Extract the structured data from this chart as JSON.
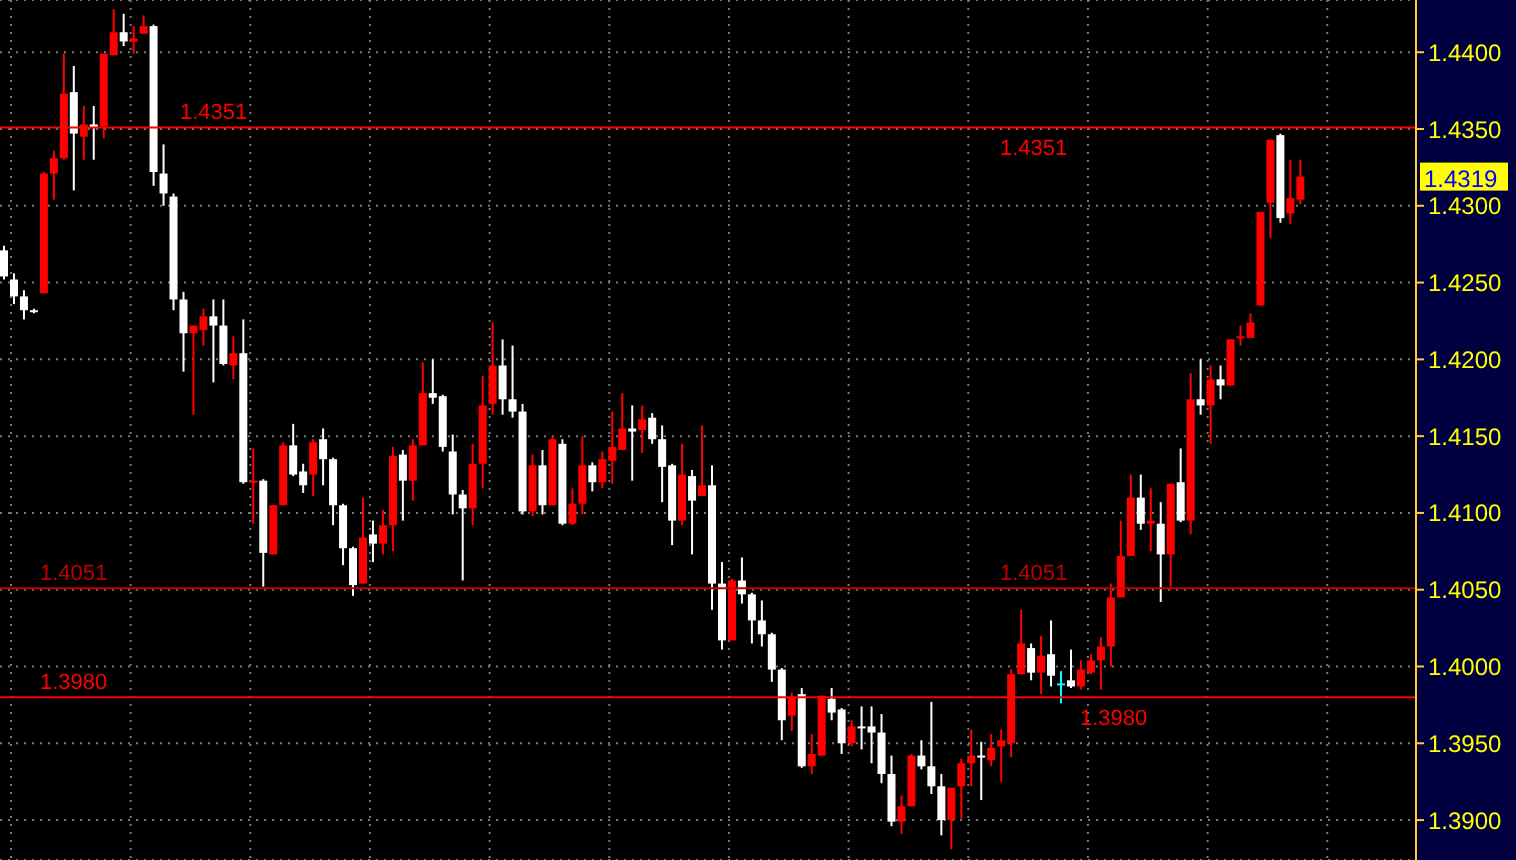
{
  "chart_data": {
    "type": "candlestick",
    "tick_labels": "y",
    "grid": true,
    "categories": [
      null,
      null,
      null,
      null,
      null,
      null,
      null,
      null,
      null,
      null,
      null,
      null,
      null,
      null,
      null,
      null,
      null,
      null,
      null,
      null,
      null,
      null,
      null,
      null,
      null,
      null,
      null,
      null,
      null,
      null,
      null,
      null,
      null,
      null,
      null,
      null,
      null,
      null,
      null,
      null,
      null,
      null,
      null,
      null,
      null,
      null,
      null,
      null,
      null,
      null,
      null,
      null,
      null,
      null,
      null,
      null,
      null,
      null,
      null,
      null,
      null,
      null,
      null,
      null,
      null,
      null,
      null,
      null,
      null,
      null,
      null,
      null,
      null,
      null,
      null,
      null,
      null,
      null,
      null,
      null,
      null,
      null,
      null,
      null,
      null,
      null,
      null,
      null,
      null,
      null,
      null,
      null,
      null,
      null,
      null,
      null,
      null,
      null,
      null,
      null,
      null,
      null,
      null,
      null,
      null,
      null,
      null,
      null,
      null,
      null,
      null,
      null,
      null,
      null,
      null,
      null,
      null,
      null,
      null,
      null,
      null,
      null,
      null,
      null,
      null,
      null,
      null,
      null,
      null,
      null,
      null,
      null,
      null,
      null,
      null,
      null,
      null,
      null,
      null,
      null,
      null,
      null
    ],
    "ohlc": [
      [
        1.4271,
        1.4274,
        1.4252,
        1.4254
      ],
      [
        1.4252,
        1.4256,
        1.4236,
        1.4241
      ],
      [
        1.4241,
        1.4245,
        1.4226,
        1.4232
      ],
      [
        1.4232,
        1.4233,
        1.423,
        1.4231
      ],
      [
        1.4243,
        1.4322,
        1.4243,
        1.4321
      ],
      [
        1.4321,
        1.4336,
        1.4304,
        1.4331
      ],
      [
        1.4331,
        1.4399,
        1.433,
        1.4373
      ],
      [
        1.4374,
        1.4391,
        1.431,
        1.4347
      ],
      [
        1.4345,
        1.4365,
        1.433,
        1.4353
      ],
      [
        1.4353,
        1.4365,
        1.433,
        1.4351
      ],
      [
        1.4352,
        1.4399,
        1.4344,
        1.4399
      ],
      [
        1.4398,
        1.4428,
        1.4398,
        1.4413
      ],
      [
        1.4413,
        1.4425,
        1.4404,
        1.4407
      ],
      [
        1.4407,
        1.4417,
        1.4399,
        1.4409
      ],
      [
        1.4412,
        1.4424,
        1.4412,
        1.4417
      ],
      [
        1.4417,
        1.4418,
        1.4313,
        1.4322
      ],
      [
        1.4321,
        1.434,
        1.43,
        1.4308
      ],
      [
        1.4306,
        1.4308,
        1.4232,
        1.4239
      ],
      [
        1.4239,
        1.4244,
        1.4192,
        1.4217
      ],
      [
        1.4217,
        1.4222,
        1.4164,
        1.4222
      ],
      [
        1.4219,
        1.4233,
        1.4209,
        1.4228
      ],
      [
        1.4228,
        1.4239,
        1.4185,
        1.4222
      ],
      [
        1.4222,
        1.4239,
        1.4196,
        1.4197
      ],
      [
        1.4196,
        1.4215,
        1.4187,
        1.4204
      ],
      [
        1.4204,
        1.4226,
        1.4119,
        1.412
      ],
      [
        1.412,
        1.4142,
        1.4093,
        1.4121
      ],
      [
        1.4121,
        1.4122,
        1.4052,
        1.4074
      ],
      [
        1.4073,
        1.4105,
        1.4073,
        1.4105
      ],
      [
        1.4105,
        1.4146,
        1.4105,
        1.4144
      ],
      [
        1.4144,
        1.4158,
        1.4124,
        1.4125
      ],
      [
        1.4127,
        1.4132,
        1.4113,
        1.4118
      ],
      [
        1.4125,
        1.4148,
        1.4111,
        1.4146
      ],
      [
        1.4148,
        1.4155,
        1.4118,
        1.4135
      ],
      [
        1.4135,
        1.4136,
        1.4092,
        1.4105
      ],
      [
        1.4105,
        1.4106,
        1.4066,
        1.4077
      ],
      [
        1.4077,
        1.4078,
        1.4046,
        1.4053
      ],
      [
        1.4054,
        1.411,
        1.4054,
        1.4084
      ],
      [
        1.4086,
        1.4095,
        1.4068,
        1.408
      ],
      [
        1.408,
        1.4102,
        1.4073,
        1.4092
      ],
      [
        1.4092,
        1.4143,
        1.4075,
        1.4137
      ],
      [
        1.4138,
        1.4141,
        1.4095,
        1.4121
      ],
      [
        1.4121,
        1.4148,
        1.4108,
        1.4144
      ],
      [
        1.4144,
        1.4198,
        1.4144,
        1.4178
      ],
      [
        1.4178,
        1.42,
        1.4171,
        1.4175
      ],
      [
        1.4176,
        1.4177,
        1.414,
        1.4143
      ],
      [
        1.414,
        1.4151,
        1.4099,
        1.4112
      ],
      [
        1.4112,
        1.4115,
        1.4056,
        1.4103
      ],
      [
        1.4103,
        1.4145,
        1.4092,
        1.4132
      ],
      [
        1.4132,
        1.4189,
        1.4116,
        1.417
      ],
      [
        1.4171,
        1.4224,
        1.4164,
        1.4196
      ],
      [
        1.4196,
        1.4213,
        1.4164,
        1.4174
      ],
      [
        1.4174,
        1.4209,
        1.4162,
        1.4166
      ],
      [
        1.4166,
        1.4171,
        1.4099,
        1.4101
      ],
      [
        1.4101,
        1.4138,
        1.4098,
        1.4131
      ],
      [
        1.4131,
        1.4141,
        1.4099,
        1.4105
      ],
      [
        1.4105,
        1.415,
        1.4105,
        1.4148
      ],
      [
        1.4145,
        1.4148,
        1.4092,
        1.4093
      ],
      [
        1.4093,
        1.4116,
        1.4092,
        1.4106
      ],
      [
        1.4106,
        1.415,
        1.4099,
        1.4131
      ],
      [
        1.4131,
        1.4133,
        1.4114,
        1.412
      ],
      [
        1.412,
        1.414,
        1.4116,
        1.4135
      ],
      [
        1.4134,
        1.4166,
        1.4119,
        1.4143
      ],
      [
        1.4141,
        1.4178,
        1.4141,
        1.4155
      ],
      [
        1.4155,
        1.417,
        1.4121,
        1.4153
      ],
      [
        1.4154,
        1.417,
        1.4139,
        1.4161
      ],
      [
        1.4162,
        1.4165,
        1.4145,
        1.4148
      ],
      [
        1.4148,
        1.4157,
        1.4107,
        1.413
      ],
      [
        1.4131,
        1.4132,
        1.4079,
        1.4095
      ],
      [
        1.4095,
        1.4145,
        1.4092,
        1.4125
      ],
      [
        1.4124,
        1.4128,
        1.4073,
        1.4108
      ],
      [
        1.4111,
        1.4157,
        1.4111,
        1.4118
      ],
      [
        1.4118,
        1.4131,
        1.4037,
        1.4054
      ],
      [
        1.4054,
        1.4068,
        1.4011,
        1.4017
      ],
      [
        1.4017,
        1.4057,
        1.4017,
        1.4056
      ],
      [
        1.4056,
        1.4071,
        1.4041,
        1.4047
      ],
      [
        1.4047,
        1.4048,
        1.4015,
        1.403
      ],
      [
        1.403,
        1.4043,
        1.4013,
        1.4021
      ],
      [
        1.4021,
        1.4022,
        1.399,
        1.3998
      ],
      [
        1.3998,
        1.3999,
        1.3952,
        1.3965
      ],
      [
        1.3968,
        1.3983,
        1.3958,
        1.398
      ],
      [
        1.3982,
        1.3986,
        1.3934,
        1.3935
      ],
      [
        1.3935,
        1.3956,
        1.393,
        1.3943
      ],
      [
        1.3942,
        1.3981,
        1.3942,
        1.3981
      ],
      [
        1.3979,
        1.3986,
        1.3965,
        1.397
      ],
      [
        1.3972,
        1.3973,
        1.3943,
        1.395
      ],
      [
        1.395,
        1.3965,
        1.3948,
        1.3961
      ],
      [
        1.3961,
        1.3974,
        1.3946,
        1.396
      ],
      [
        1.3961,
        1.3974,
        1.3937,
        1.3957
      ],
      [
        1.3957,
        1.3969,
        1.3924,
        1.393
      ],
      [
        1.393,
        1.3942,
        1.3896,
        1.3899
      ],
      [
        1.3899,
        1.3916,
        1.3891,
        1.3909
      ],
      [
        1.3909,
        1.3943,
        1.3909,
        1.3942
      ],
      [
        1.3942,
        1.3952,
        1.3933,
        1.3935
      ],
      [
        1.3935,
        1.3977,
        1.3917,
        1.3922
      ],
      [
        1.3922,
        1.393,
        1.389,
        1.39
      ],
      [
        1.39,
        1.3921,
        1.3881,
        1.3921
      ],
      [
        1.3922,
        1.394,
        1.3901,
        1.3937
      ],
      [
        1.3937,
        1.3959,
        1.3922,
        1.3942
      ],
      [
        1.3942,
        1.3951,
        1.3913,
        1.3941
      ],
      [
        1.3939,
        1.3956,
        1.3935,
        1.3947
      ],
      [
        1.3948,
        1.3959,
        1.3925,
        1.3952
      ],
      [
        1.395,
        1.3998,
        1.3941,
        1.3995
      ],
      [
        1.3995,
        1.4037,
        1.3995,
        1.4015
      ],
      [
        1.4012,
        1.4015,
        1.3991,
        1.3996
      ],
      [
        1.3996,
        1.402,
        1.3982,
        1.4007
      ],
      [
        1.4008,
        1.403,
        1.3987,
        1.3994
      ],
      [
        1.3989,
        1.3997,
        1.3976,
        1.3989
      ],
      [
        1.3991,
        1.4011,
        1.3986,
        1.3987
      ],
      [
        1.3987,
        1.4004,
        1.3985,
        1.3998
      ],
      [
        1.3996,
        1.4008,
        1.3995,
        1.4004
      ],
      [
        1.4004,
        1.4019,
        1.3985,
        1.4013
      ],
      [
        1.4013,
        1.4054,
        1.4,
        1.4045
      ],
      [
        1.4045,
        1.4095,
        1.4045,
        1.4072
      ],
      [
        1.4072,
        1.4125,
        1.4072,
        1.411
      ],
      [
        1.411,
        1.4125,
        1.4089,
        1.4093
      ],
      [
        1.4093,
        1.4116,
        1.4075,
        1.4095
      ],
      [
        1.4093,
        1.4107,
        1.4042,
        1.4073
      ],
      [
        1.4073,
        1.4119,
        1.4052,
        1.4119
      ],
      [
        1.412,
        1.4142,
        1.4094,
        1.4095
      ],
      [
        1.4095,
        1.4191,
        1.4086,
        1.4174
      ],
      [
        1.4174,
        1.42,
        1.4164,
        1.417
      ],
      [
        1.417,
        1.4196,
        1.4145,
        1.4187
      ],
      [
        1.4187,
        1.4196,
        1.4174,
        1.4183
      ],
      [
        1.4183,
        1.4213,
        1.4183,
        1.4213
      ],
      [
        1.4214,
        1.4222,
        1.4209,
        1.4215
      ],
      [
        1.4214,
        1.423,
        1.4214,
        1.4224
      ],
      [
        1.4235,
        1.4296,
        1.4235,
        1.4296
      ],
      [
        1.4302,
        1.4343,
        1.4279,
        1.4343
      ],
      [
        1.4346,
        1.4347,
        1.4289,
        1.4292
      ],
      [
        1.4295,
        1.433,
        1.4288,
        1.4305
      ],
      [
        1.4304,
        1.433,
        1.4301,
        1.4319
      ],
      null,
      null,
      null,
      null,
      null,
      null,
      null,
      null,
      null,
      null,
      null
    ],
    "colors": [
      "#ffffff",
      "#ffffff",
      "#ffffff",
      "#ffffff",
      "#ff0000",
      "#ff0000",
      "#ff0000",
      "#ffffff",
      "#ff0000",
      "#ffffff",
      "#ff0000",
      "#ff0000",
      "#ffffff",
      "#ff0000",
      "#ff0000",
      "#ffffff",
      "#ffffff",
      "#ffffff",
      "#ffffff",
      "#ff0000",
      "#ff0000",
      "#ffffff",
      "#ffffff",
      "#ff0000",
      "#ffffff",
      "#ff0000",
      "#ffffff",
      "#ff0000",
      "#ff0000",
      "#ffffff",
      "#ffffff",
      "#ff0000",
      "#ffffff",
      "#ffffff",
      "#ffffff",
      "#ffffff",
      "#ff0000",
      "#ffffff",
      "#ff0000",
      "#ff0000",
      "#ffffff",
      "#ff0000",
      "#ff0000",
      "#ffffff",
      "#ffffff",
      "#ffffff",
      "#ffffff",
      "#ff0000",
      "#ff0000",
      "#ff0000",
      "#ffffff",
      "#ffffff",
      "#ffffff",
      "#ff0000",
      "#ffffff",
      "#ff0000",
      "#ffffff",
      "#ff0000",
      "#ff0000",
      "#ffffff",
      "#ff0000",
      "#ff0000",
      "#ff0000",
      "#ffffff",
      "#ff0000",
      "#ffffff",
      "#ffffff",
      "#ffffff",
      "#ff0000",
      "#ffffff",
      "#ff0000",
      "#ffffff",
      "#ffffff",
      "#ff0000",
      "#ffffff",
      "#ffffff",
      "#ffffff",
      "#ffffff",
      "#ffffff",
      "#ff0000",
      "#ffffff",
      "#ff0000",
      "#ff0000",
      "#ffffff",
      "#ffffff",
      "#ff0000",
      "#ffffff",
      "#ffffff",
      "#ffffff",
      "#ffffff",
      "#ff0000",
      "#ff0000",
      "#ffffff",
      "#ffffff",
      "#ffffff",
      "#ff0000",
      "#ff0000",
      "#ff0000",
      "#ffffff",
      "#ff0000",
      "#ff0000",
      "#ff0000",
      "#ff0000",
      "#ffffff",
      "#ff0000",
      "#ffffff",
      "#00ffff",
      "#ffffff",
      "#ff0000",
      "#ff0000",
      "#ff0000",
      "#ff0000",
      "#ff0000",
      "#ff0000",
      "#ffffff",
      "#ff0000",
      "#ffffff",
      "#ff0000",
      "#ffffff",
      "#ff0000",
      "#ffffff",
      "#ff0000",
      "#ffffff",
      "#ff0000",
      "#ff0000",
      "#ff0000",
      "#ff0000",
      "#ff0000",
      "#ffffff",
      "#ff0000",
      "#ff0000",
      null,
      null,
      null,
      null,
      null,
      null,
      null,
      null,
      null,
      null,
      null
    ],
    "ylim": [
      1.3874,
      1.4434
    ],
    "yticks": [
      {
        "value": 1.39,
        "label": "1.3900"
      },
      {
        "value": 1.395,
        "label": "1.3950"
      },
      {
        "value": 1.4,
        "label": "1.4000"
      },
      {
        "value": 1.405,
        "label": "1.4050"
      },
      {
        "value": 1.41,
        "label": "1.4100"
      },
      {
        "value": 1.415,
        "label": "1.4150"
      },
      {
        "value": 1.42,
        "label": "1.4200"
      },
      {
        "value": 1.425,
        "label": "1.4250"
      },
      {
        "value": 1.43,
        "label": "1.4300"
      },
      {
        "value": 1.435,
        "label": "1.4350"
      },
      {
        "value": 1.44,
        "label": "1.4400"
      }
    ],
    "ref_lines": [
      {
        "axis": "y",
        "value": 1.4351,
        "label": "1.4351",
        "color": "#ff0000"
      },
      {
        "axis": "y",
        "value": 1.4051,
        "label": "1.4051",
        "color": "#c00000"
      },
      {
        "axis": "y",
        "value": 1.398,
        "label": "1.3980",
        "color": "#ff0000"
      }
    ],
    "annotations": [
      {
        "text": "1.4319",
        "y": 1.4319
      }
    ]
  }
}
